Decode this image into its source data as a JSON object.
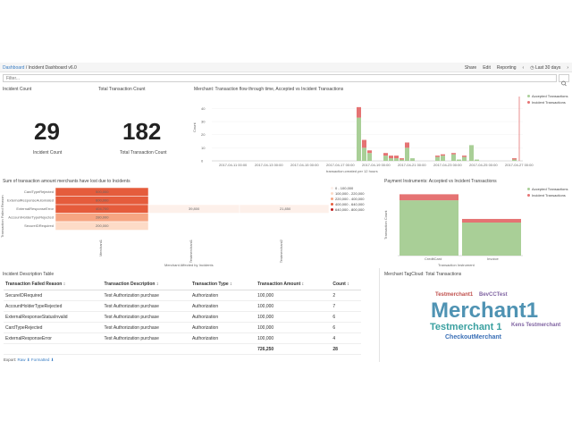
{
  "nav": {
    "breadcrumb_root": "Dashboard",
    "breadcrumb_sep": " / ",
    "breadcrumb_current": "Incident Dashboard v6.0",
    "links": [
      "Share",
      "Edit",
      "Reporting"
    ],
    "time_range": "Last 30 days"
  },
  "filter": {
    "placeholder": "Filter..."
  },
  "incident_count": {
    "panel_title": "Incident Count",
    "value": "29",
    "label": "Incident Count"
  },
  "transaction_count": {
    "panel_title": "Total Transaction Count",
    "value": "182",
    "label": "Total Transaction Count"
  },
  "merchant_flow": {
    "panel_title": "Merchant: Transaction flow through time, Accepted vs Incident Transactions",
    "ylabel": "Count",
    "xlabel": "transaction.created per 12 hours",
    "x_ticks": [
      "2017-04-11 00:00",
      "2017-04-13 00:00",
      "2017-04-15 00:00",
      "2017-04-17 00:00",
      "2017-04-19 00:00",
      "2017-04-21 00:00",
      "2017-04-23 00:00",
      "2017-04-25 00:00",
      "2017-04-27 00:00"
    ],
    "y_ticks": [
      "0",
      "10",
      "20",
      "30",
      "40"
    ],
    "legend": [
      "Accepted Transactions",
      "Incident Transactions"
    ],
    "colors": {
      "accepted": "#a9cf97",
      "incident": "#e57373"
    }
  },
  "heatmap": {
    "panel_title": "Sum of transaction amount merchants have lost due to Incidents",
    "ylabel": "Transaction Failed Reason",
    "xlabel": "Merchant Affected by Incidents",
    "rows": [
      "CardTypeRejected",
      "ExternalResponseAutomated",
      "ExternalResponseError",
      "AccountHolderTypeRejected",
      "SecureIDRequired"
    ],
    "cols": [
      "Merchant1",
      "Testmerchant1",
      "Testmerchant2"
    ],
    "cells": [
      [
        "500,000",
        "",
        ""
      ],
      [
        "600,000",
        "",
        ""
      ],
      [
        "404,700",
        "39,800",
        "21,850"
      ],
      [
        "280,000",
        "",
        ""
      ],
      [
        "200,000",
        "",
        ""
      ]
    ],
    "legend": [
      "0 - 100,000",
      "100,000 - 220,000",
      "220,000 - 400,000",
      "400,000 - 640,000",
      "640,000 - 800,000"
    ]
  },
  "payment": {
    "panel_title": "Payment Instruments: Accepted vs Incident Transactions",
    "ylabel": "Transaction Count",
    "xlabel": "Transaction Instrument",
    "categories": [
      "CreditCard",
      "Invoice"
    ],
    "legend": [
      "Accepted Transactions",
      "Incident Transactions"
    ]
  },
  "table": {
    "panel_title": "Incident Description Table",
    "headers": [
      "Transaction Failed Reason ↕",
      "Transaction Description ↕",
      "Transaction Type ↕",
      "Transaction Amount ↕",
      "Count ↕"
    ],
    "rows": [
      [
        "SecureIDRequired",
        "Test Authorization purchase",
        "Authorization",
        "100,000",
        "2"
      ],
      [
        "AccountHolderTypeRejected",
        "Test Authorization purchase",
        "Authorization",
        "100,000",
        "7"
      ],
      [
        "ExternalResponseStatusInvalid",
        "Test Authorization purchase",
        "Authorization",
        "100,000",
        "6"
      ],
      [
        "CardTypeRejected",
        "Test Authorization purchase",
        "Authorization",
        "100,000",
        "6"
      ],
      [
        "ExternalResponseError",
        "Test Authorization purchase",
        "Authorization",
        "100,000",
        "4"
      ]
    ],
    "total_amount": "726,250",
    "total_count": "28",
    "export_label": "Export:",
    "export_raw": "Raw",
    "export_formatted": "Formatted"
  },
  "cloud": {
    "panel_title": "Merchant TagCloud: Total Transactions",
    "words": [
      "Testmerchant1",
      "BevCCTest",
      "Merchant1",
      "Testmerchant 1",
      "Kens Testmerchant",
      "CheckoutMerchant"
    ]
  },
  "chart_data": [
    {
      "type": "bar",
      "title": "Merchant: Transaction flow through time, Accepted vs Incident Transactions",
      "xlabel": "transaction.created per 12 hours",
      "ylabel": "Count",
      "ylim": [
        0,
        45
      ],
      "series": [
        {
          "name": "Accepted Transactions",
          "values": [
            33,
            10,
            6,
            4,
            2,
            2,
            1,
            10,
            2,
            3,
            4,
            5,
            1,
            3,
            12,
            1,
            0,
            1
          ]
        },
        {
          "name": "Incident Transactions",
          "values": [
            8,
            6,
            2,
            2,
            2,
            2,
            1,
            4,
            0,
            1,
            1,
            1,
            0,
            1,
            0,
            0,
            0,
            1
          ]
        }
      ]
    },
    {
      "type": "heatmap",
      "title": "Sum of transaction amount merchants have lost due to Incidents",
      "rows": [
        "CardTypeRejected",
        "ExternalResponseAutomated",
        "ExternalResponseError",
        "AccountHolderTypeRejected",
        "SecureIDRequired"
      ],
      "cols": [
        "Merchant1",
        "Testmerchant1",
        "Testmerchant2"
      ],
      "values": [
        [
          500000,
          null,
          null
        ],
        [
          600000,
          null,
          null
        ],
        [
          404700,
          39800,
          21850
        ],
        [
          280000,
          null,
          null
        ],
        [
          200000,
          null,
          null
        ]
      ]
    },
    {
      "type": "bar",
      "title": "Payment Instruments: Accepted vs Incident Transactions",
      "categories": [
        "CreditCard",
        "Invoice"
      ],
      "series": [
        {
          "name": "Accepted Transactions",
          "values": [
            92,
            55
          ]
        },
        {
          "name": "Incident Transactions",
          "values": [
            10,
            6
          ]
        }
      ],
      "ylim": [
        0,
        110
      ]
    }
  ]
}
